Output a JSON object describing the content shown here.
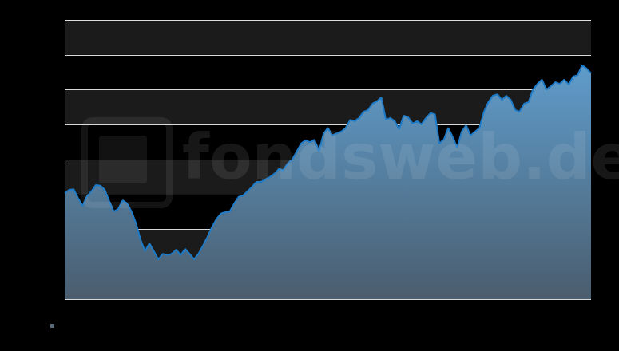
{
  "chart_data": {
    "type": "area",
    "annotations": [
      "fondsweb.de"
    ],
    "categories": [
      null,
      null,
      null,
      null,
      null,
      null,
      null,
      null,
      null,
      null,
      null,
      null,
      null,
      null,
      null,
      null,
      null,
      null,
      null,
      null,
      null,
      null,
      null,
      null,
      null,
      null,
      null,
      null,
      null,
      null,
      null,
      null,
      null,
      null,
      null,
      null,
      null,
      null,
      null,
      null,
      null,
      null,
      null,
      null,
      null,
      null,
      null,
      null,
      null,
      null,
      null,
      null,
      null,
      null,
      null,
      null,
      null,
      null,
      null,
      null,
      null,
      null,
      null,
      null,
      null,
      null,
      null,
      null,
      null,
      null,
      null,
      null,
      null,
      null,
      null,
      null,
      null,
      null,
      null,
      null,
      null,
      null,
      null,
      null,
      null,
      null,
      null,
      null,
      null,
      null,
      null,
      null,
      null,
      null,
      null,
      null,
      null,
      null,
      null,
      null,
      null,
      null,
      null,
      null,
      null,
      null,
      null,
      null,
      null,
      null,
      null,
      null,
      null,
      null,
      null,
      null,
      null,
      null,
      null
    ],
    "values": [
      3.04,
      3.13,
      3.15,
      2.9,
      2.67,
      2.95,
      3.09,
      3.27,
      3.25,
      3.13,
      2.81,
      2.51,
      2.58,
      2.83,
      2.74,
      2.51,
      2.17,
      1.71,
      1.37,
      1.6,
      1.37,
      1.14,
      1.3,
      1.26,
      1.3,
      1.42,
      1.26,
      1.44,
      1.3,
      1.14,
      1.3,
      1.53,
      1.78,
      2.06,
      2.29,
      2.45,
      2.49,
      2.51,
      2.74,
      2.93,
      2.97,
      3.09,
      3.22,
      3.36,
      3.36,
      3.43,
      3.5,
      3.59,
      3.73,
      3.7,
      3.89,
      4.0,
      4.23,
      4.46,
      4.55,
      4.5,
      4.57,
      4.23,
      4.73,
      4.91,
      4.69,
      4.75,
      4.8,
      4.91,
      5.14,
      5.1,
      5.19,
      5.37,
      5.42,
      5.6,
      5.67,
      5.78,
      5.14,
      5.19,
      5.1,
      4.87,
      5.26,
      5.21,
      5.03,
      5.1,
      5.01,
      5.19,
      5.33,
      5.3,
      4.46,
      4.57,
      4.91,
      4.64,
      4.34,
      4.8,
      4.98,
      4.69,
      4.8,
      4.91,
      5.37,
      5.65,
      5.83,
      5.87,
      5.71,
      5.83,
      5.71,
      5.42,
      5.37,
      5.6,
      5.65,
      6.01,
      6.17,
      6.29,
      6.01,
      6.1,
      6.22,
      6.17,
      6.29,
      6.15,
      6.38,
      6.42,
      6.7,
      6.61,
      6.47
    ],
    "color": "#1e7bc8",
    "ylim": [
      0,
      8
    ],
    "yticks": [
      0,
      1,
      2,
      3,
      4,
      5,
      6,
      7,
      8
    ],
    "grid": true,
    "tick_labels": false
  }
}
